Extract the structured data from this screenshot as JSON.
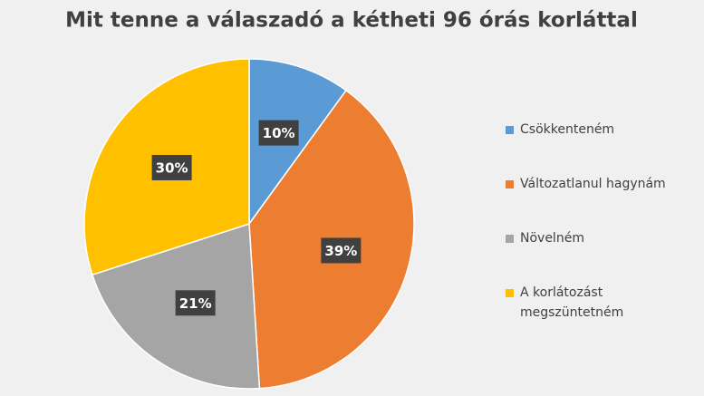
{
  "chart_data": {
    "type": "pie",
    "title": "Mit tenne a válaszadó a kétheti 96 órás korláttal",
    "categories": [
      "Csökkenteném",
      "Változatlanul hagynám",
      "Növelném",
      "A korlátozást megszüntetném"
    ],
    "values": [
      10,
      39,
      21,
      30
    ],
    "value_labels": [
      "10%",
      "39%",
      "21%",
      "30%"
    ],
    "colors": [
      "#5b9bd5",
      "#ed7d31",
      "#a5a5a5",
      "#ffc000"
    ],
    "legend": "right"
  }
}
